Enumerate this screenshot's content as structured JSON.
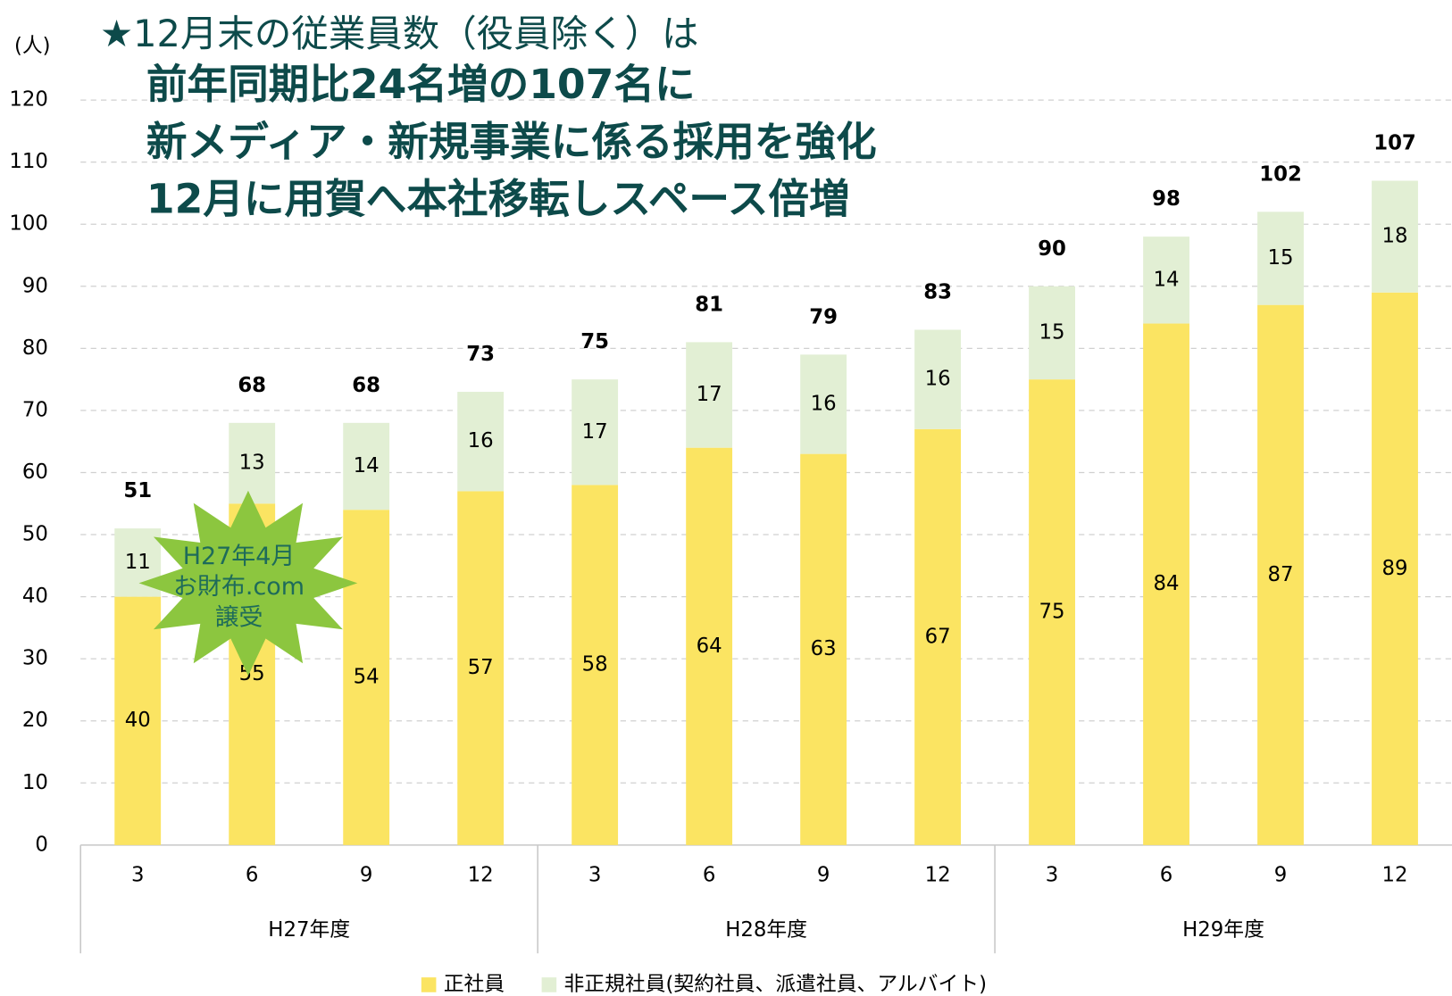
{
  "chart_data": {
    "type": "stacked_bar",
    "title": "★12月末の従業員数（役員除く）は",
    "subtitle": [
      "前年同期比24名増の107名に",
      "新メディア・新規事業に係る採用を強化",
      "12月に用賀へ本社移転しスペース倍増"
    ],
    "y_label": "(人)",
    "categories": [
      "3",
      "6",
      "9",
      "12",
      "3",
      "6",
      "9",
      "12",
      "3",
      "6",
      "9",
      "12"
    ],
    "groups": [
      "H27年度",
      "H28年度",
      "H29年度"
    ],
    "series": [
      {
        "name": "正社員",
        "color": "#fbe462",
        "values": [
          40,
          55,
          54,
          57,
          58,
          64,
          63,
          67,
          75,
          84,
          87,
          89
        ]
      },
      {
        "name": "非正規社員(契約社員、派遣社員、アルバイト)",
        "color": "#e2efd4",
        "values": [
          11,
          13,
          14,
          16,
          17,
          17,
          16,
          16,
          15,
          14,
          15,
          18
        ]
      }
    ],
    "totals": [
      51,
      68,
      68,
      73,
      75,
      81,
      79,
      83,
      90,
      98,
      102,
      107
    ],
    "annotation": [
      "H27年4月",
      "お財布.com",
      "譲受"
    ],
    "ylim": [
      0,
      120
    ],
    "yticks": [
      0,
      10,
      20,
      30,
      40,
      50,
      60,
      70,
      80,
      90,
      100,
      110,
      120
    ],
    "grid": true
  }
}
